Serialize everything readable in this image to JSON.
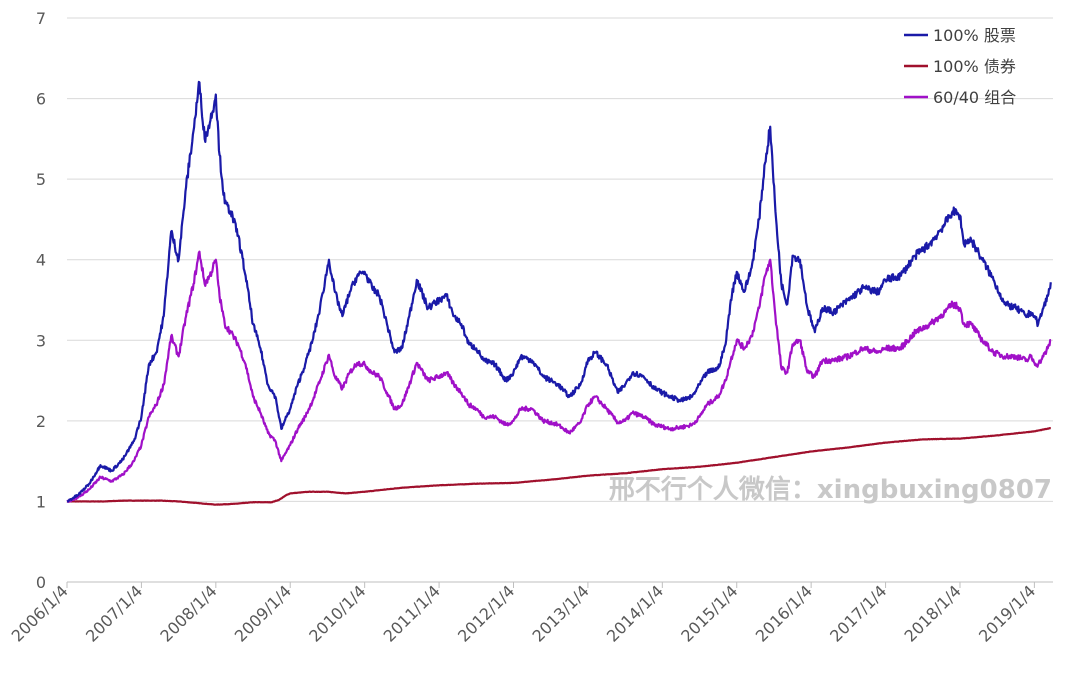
{
  "chart_data": {
    "type": "line",
    "title": "",
    "xlabel": "",
    "ylabel": "",
    "ylim": [
      0,
      7
    ],
    "yticks": [
      0,
      1,
      2,
      3,
      4,
      5,
      6,
      7
    ],
    "xlim": [
      2006.0,
      2019.25
    ],
    "xtick_labels": [
      "2006/1/4",
      "2007/1/4",
      "2008/1/4",
      "2009/1/4",
      "2010/1/4",
      "2011/1/4",
      "2012/1/4",
      "2013/1/4",
      "2014/1/4",
      "2015/1/4",
      "2016/1/4",
      "2017/1/4",
      "2018/1/4",
      "2019/1/4"
    ],
    "xtick_values": [
      2006,
      2007,
      2008,
      2009,
      2010,
      2011,
      2012,
      2013,
      2014,
      2015,
      2016,
      2017,
      2018,
      2019
    ],
    "grid": true,
    "legend_position": "top-right",
    "series": [
      {
        "name": "100% 股票",
        "color": "#1a1aa8",
        "x": [
          2006.0,
          2006.15,
          2006.3,
          2006.45,
          2006.6,
          2006.75,
          2006.9,
          2007.0,
          2007.1,
          2007.2,
          2007.3,
          2007.4,
          2007.5,
          2007.6,
          2007.7,
          2007.78,
          2007.85,
          2007.92,
          2008.0,
          2008.05,
          2008.12,
          2008.2,
          2008.3,
          2008.4,
          2008.5,
          2008.6,
          2008.7,
          2008.8,
          2008.88,
          2008.95,
          2009.0,
          2009.1,
          2009.2,
          2009.3,
          2009.4,
          2009.52,
          2009.6,
          2009.7,
          2009.8,
          2009.9,
          2010.0,
          2010.1,
          2010.2,
          2010.3,
          2010.4,
          2010.5,
          2010.6,
          2010.7,
          2010.85,
          2011.0,
          2011.1,
          2011.2,
          2011.3,
          2011.4,
          2011.5,
          2011.6,
          2011.75,
          2011.9,
          2012.0,
          2012.1,
          2012.25,
          2012.4,
          2012.5,
          2012.6,
          2012.75,
          2012.9,
          2013.0,
          2013.1,
          2013.25,
          2013.4,
          2013.5,
          2013.6,
          2013.75,
          2013.9,
          2014.0,
          2014.1,
          2014.25,
          2014.4,
          2014.5,
          2014.6,
          2014.75,
          2014.85,
          2014.92,
          2015.0,
          2015.1,
          2015.2,
          2015.3,
          2015.38,
          2015.45,
          2015.52,
          2015.6,
          2015.68,
          2015.75,
          2015.85,
          2015.95,
          2016.05,
          2016.15,
          2016.3,
          2016.5,
          2016.7,
          2016.9,
          2017.0,
          2017.2,
          2017.4,
          2017.6,
          2017.8,
          2017.9,
          2018.0,
          2018.05,
          2018.15,
          2018.3,
          2018.45,
          2018.6,
          2018.75,
          2018.9,
          2018.95,
          2019.0,
          2019.05,
          2019.12,
          2019.18,
          2019.22
        ],
        "y": [
          1.0,
          1.08,
          1.22,
          1.45,
          1.38,
          1.52,
          1.75,
          2.05,
          2.7,
          2.85,
          3.3,
          4.35,
          4.0,
          4.9,
          5.6,
          6.2,
          5.5,
          5.7,
          6.05,
          5.3,
          4.7,
          4.6,
          4.3,
          3.8,
          3.2,
          2.9,
          2.45,
          2.3,
          1.9,
          2.05,
          2.15,
          2.45,
          2.7,
          3.0,
          3.4,
          4.0,
          3.6,
          3.3,
          3.6,
          3.8,
          3.85,
          3.65,
          3.55,
          3.2,
          2.85,
          2.9,
          3.3,
          3.75,
          3.4,
          3.5,
          3.55,
          3.3,
          3.2,
          2.95,
          2.9,
          2.75,
          2.7,
          2.5,
          2.6,
          2.8,
          2.75,
          2.55,
          2.5,
          2.45,
          2.3,
          2.45,
          2.75,
          2.85,
          2.7,
          2.35,
          2.45,
          2.6,
          2.55,
          2.4,
          2.35,
          2.3,
          2.25,
          2.3,
          2.45,
          2.6,
          2.65,
          2.95,
          3.5,
          3.85,
          3.6,
          3.9,
          4.5,
          5.2,
          5.65,
          4.6,
          3.7,
          3.45,
          4.05,
          4.0,
          3.4,
          3.1,
          3.4,
          3.35,
          3.5,
          3.65,
          3.6,
          3.75,
          3.8,
          4.05,
          4.2,
          4.45,
          4.6,
          4.55,
          4.2,
          4.25,
          4.0,
          3.75,
          3.45,
          3.4,
          3.3,
          3.35,
          3.3,
          3.2,
          3.4,
          3.55,
          3.72
        ]
      },
      {
        "name": "100% 债券",
        "color": "#a0102c",
        "x": [
          2006.0,
          2006.25,
          2006.5,
          2006.75,
          2007.0,
          2007.25,
          2007.5,
          2007.75,
          2008.0,
          2008.25,
          2008.5,
          2008.75,
          2008.85,
          2008.95,
          2009.0,
          2009.25,
          2009.5,
          2009.75,
          2010.0,
          2010.5,
          2011.0,
          2011.5,
          2012.0,
          2012.5,
          2013.0,
          2013.5,
          2014.0,
          2014.5,
          2015.0,
          2015.5,
          2016.0,
          2016.5,
          2017.0,
          2017.5,
          2018.0,
          2018.5,
          2019.0,
          2019.22
        ],
        "y": [
          1.0,
          1.0,
          1.0,
          1.01,
          1.01,
          1.01,
          1.0,
          0.98,
          0.96,
          0.97,
          0.99,
          0.99,
          1.02,
          1.08,
          1.1,
          1.12,
          1.12,
          1.1,
          1.12,
          1.17,
          1.2,
          1.22,
          1.23,
          1.27,
          1.32,
          1.35,
          1.4,
          1.43,
          1.48,
          1.55,
          1.62,
          1.67,
          1.73,
          1.77,
          1.78,
          1.82,
          1.87,
          1.91
        ]
      },
      {
        "name": "60/40 组合",
        "color": "#a010c8",
        "x": [
          2006.0,
          2006.15,
          2006.3,
          2006.45,
          2006.6,
          2006.75,
          2006.9,
          2007.0,
          2007.1,
          2007.2,
          2007.3,
          2007.4,
          2007.5,
          2007.6,
          2007.7,
          2007.78,
          2007.85,
          2007.92,
          2008.0,
          2008.05,
          2008.12,
          2008.2,
          2008.3,
          2008.4,
          2008.5,
          2008.6,
          2008.7,
          2008.8,
          2008.88,
          2008.95,
          2009.0,
          2009.1,
          2009.2,
          2009.3,
          2009.4,
          2009.52,
          2009.6,
          2009.7,
          2009.8,
          2009.9,
          2010.0,
          2010.1,
          2010.2,
          2010.3,
          2010.4,
          2010.5,
          2010.6,
          2010.7,
          2010.85,
          2011.0,
          2011.1,
          2011.2,
          2011.3,
          2011.4,
          2011.5,
          2011.6,
          2011.75,
          2011.9,
          2012.0,
          2012.1,
          2012.25,
          2012.4,
          2012.5,
          2012.6,
          2012.75,
          2012.9,
          2013.0,
          2013.1,
          2013.25,
          2013.4,
          2013.5,
          2013.6,
          2013.75,
          2013.9,
          2014.0,
          2014.1,
          2014.25,
          2014.4,
          2014.5,
          2014.6,
          2014.75,
          2014.85,
          2014.92,
          2015.0,
          2015.1,
          2015.2,
          2015.3,
          2015.38,
          2015.45,
          2015.52,
          2015.6,
          2015.68,
          2015.75,
          2015.85,
          2015.95,
          2016.05,
          2016.15,
          2016.3,
          2016.5,
          2016.7,
          2016.9,
          2017.0,
          2017.2,
          2017.4,
          2017.6,
          2017.8,
          2017.9,
          2018.0,
          2018.05,
          2018.15,
          2018.3,
          2018.45,
          2018.6,
          2018.75,
          2018.9,
          2018.95,
          2019.0,
          2019.05,
          2019.12,
          2019.18,
          2019.22
        ],
        "y": [
          1.0,
          1.05,
          1.15,
          1.3,
          1.25,
          1.33,
          1.5,
          1.7,
          2.05,
          2.2,
          2.45,
          3.05,
          2.8,
          3.3,
          3.7,
          4.1,
          3.7,
          3.8,
          4.0,
          3.55,
          3.2,
          3.1,
          2.95,
          2.7,
          2.3,
          2.1,
          1.85,
          1.75,
          1.5,
          1.62,
          1.7,
          1.9,
          2.05,
          2.25,
          2.5,
          2.82,
          2.55,
          2.4,
          2.6,
          2.72,
          2.7,
          2.6,
          2.55,
          2.35,
          2.15,
          2.2,
          2.45,
          2.72,
          2.5,
          2.55,
          2.6,
          2.45,
          2.35,
          2.2,
          2.15,
          2.05,
          2.05,
          1.95,
          2.0,
          2.15,
          2.15,
          2.0,
          1.98,
          1.95,
          1.85,
          1.98,
          2.2,
          2.3,
          2.15,
          1.98,
          2.0,
          2.1,
          2.05,
          1.95,
          1.93,
          1.9,
          1.92,
          1.95,
          2.05,
          2.2,
          2.3,
          2.5,
          2.75,
          3.0,
          2.9,
          3.05,
          3.4,
          3.8,
          4.0,
          3.3,
          2.65,
          2.6,
          2.95,
          3.0,
          2.6,
          2.55,
          2.75,
          2.75,
          2.8,
          2.9,
          2.85,
          2.9,
          2.9,
          3.1,
          3.2,
          3.35,
          3.45,
          3.4,
          3.2,
          3.2,
          3.0,
          2.85,
          2.8,
          2.8,
          2.75,
          2.8,
          2.72,
          2.7,
          2.8,
          2.9,
          3.0
        ]
      }
    ]
  },
  "watermark": "邢不行个人微信：xingbuxing0807"
}
